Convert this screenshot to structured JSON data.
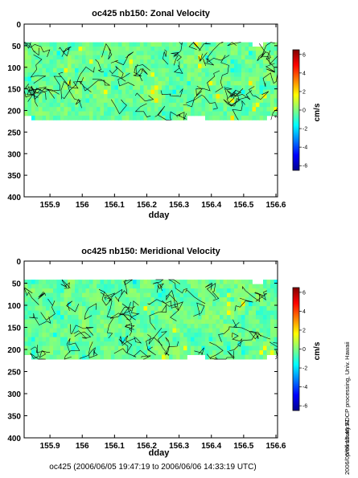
{
  "chart_data": [
    {
      "type": "heatmap",
      "title": "oc425 nb150: Zonal Velocity",
      "xlabel": "dday",
      "ylabel": "",
      "xlim": [
        155.82,
        156.605
      ],
      "ylim": [
        400,
        0
      ],
      "y_reversed": true,
      "xticks": [
        155.9,
        156,
        156.1,
        156.2,
        156.3,
        156.4,
        156.5,
        156.6
      ],
      "xtick_labels": [
        "155.9",
        "156",
        "156.1",
        "156.2",
        "156.3",
        "156.4",
        "156.5",
        "156.6"
      ],
      "yticks": [
        0,
        50,
        100,
        150,
        200,
        250,
        300,
        350,
        400
      ],
      "ytick_labels": [
        "0",
        "50",
        "100",
        "150",
        "200",
        "250",
        "300",
        "350",
        "400"
      ],
      "data_depth_range": [
        42,
        222
      ],
      "colorbar": {
        "label": "cm/s",
        "range": [
          -6.5,
          6.5
        ],
        "ticks": [
          6,
          4,
          2,
          0,
          -2,
          -4,
          -6
        ],
        "tick_labels": [
          "6",
          "4",
          "2",
          "0",
          "-2",
          "-4",
          "-6"
        ],
        "colormap": "jet"
      },
      "value_note": "velocities mostly between -1 and +1 cm/s"
    },
    {
      "type": "heatmap",
      "title": "oc425 nb150: Meridional Velocity",
      "xlabel": "dday",
      "ylabel": "",
      "xlim": [
        155.82,
        156.605
      ],
      "ylim": [
        400,
        0
      ],
      "y_reversed": true,
      "xticks": [
        155.9,
        156,
        156.1,
        156.2,
        156.3,
        156.4,
        156.5,
        156.6
      ],
      "xtick_labels": [
        "155.9",
        "156",
        "156.1",
        "156.2",
        "156.3",
        "156.4",
        "156.5",
        "156.6"
      ],
      "yticks": [
        0,
        50,
        100,
        150,
        200,
        250,
        300,
        350,
        400
      ],
      "ytick_labels": [
        "0",
        "50",
        "100",
        "150",
        "200",
        "250",
        "300",
        "350",
        "400"
      ],
      "data_depth_range": [
        42,
        222
      ],
      "colorbar": {
        "label": "cm/s",
        "range": [
          -6.5,
          6.5
        ],
        "ticks": [
          6,
          4,
          2,
          0,
          -2,
          -4,
          -6
        ],
        "tick_labels": [
          "6",
          "4",
          "2",
          "0",
          "-2",
          "-4",
          "-6"
        ],
        "colormap": "jet"
      },
      "value_note": "velocities mostly between -1 and +1 cm/s"
    }
  ],
  "side_note": "preliminary ADCP processing,  Univ. Hawaii",
  "timestamp": "2006/06/06 15:40:57",
  "footer": "oc425 (2006/06/05 19:47:19 to 2006/06/06 14:33:19 UTC)",
  "colors": {
    "background": "#ffffff",
    "axes": "#000000",
    "contour": "#000000"
  }
}
